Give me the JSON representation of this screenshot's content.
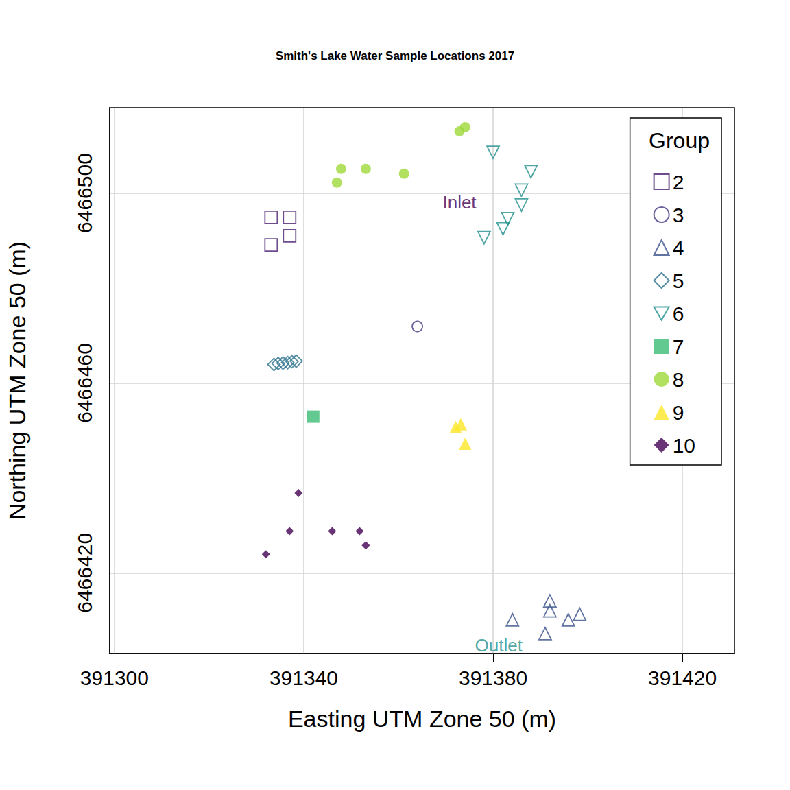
{
  "chart_data": {
    "type": "scatter",
    "title": "Smith's Lake Water Sample Locations 2017",
    "x_label": "Easting UTM Zone 50 (m)",
    "y_label": "Northing UTM Zone 50 (m)",
    "legend_title": "Group",
    "legend": "top-right",
    "grid": true,
    "xlim": [
      391299,
      391431
    ],
    "xticks": [
      391300,
      391340,
      391380,
      391420
    ],
    "ylim": [
      6466403,
      6466518
    ],
    "yticks": [
      6466420,
      6466460,
      6466500
    ],
    "series": [
      {
        "name": "2",
        "color": "#481F70",
        "marker": "square-open",
        "x": [
          391333.1,
          391337.0,
          391333.1,
          391337.0
        ],
        "y": [
          6466494.9,
          6466494.9,
          6466489.1,
          6466491.0
        ]
      },
      {
        "name": "3",
        "color": "#443A83",
        "marker": "circle-open",
        "x": [
          391364.0
        ],
        "y": [
          6466471.9
        ]
      },
      {
        "name": "4",
        "color": "#3B528B",
        "marker": "triangle-open",
        "x": [
          391384.1,
          391392.0,
          391392.0,
          391395.9,
          391398.3,
          391391.0
        ],
        "y": [
          6466410.1,
          6466414.1,
          6466412.0,
          6466410.1,
          6466411.3,
          6466407.2
        ]
      },
      {
        "name": "5",
        "color": "#2C728E",
        "marker": "diamond-open",
        "x": [
          391333.7,
          391334.6,
          391335.6,
          391336.6,
          391337.5,
          391338.4
        ],
        "y": [
          6466463.9,
          6466464.1,
          6466464.2,
          6466464.3,
          6466464.5,
          6466464.6
        ]
      },
      {
        "name": "6",
        "color": "#21908C",
        "marker": "triangle-down-open",
        "x": [
          391380.0,
          391388.0,
          391386.0,
          391386.0,
          391383.1,
          391382.1,
          391378.1
        ],
        "y": [
          6466508.6,
          6466504.5,
          6466500.6,
          6466497.5,
          6466494.6,
          6466492.5,
          6466490.6
        ]
      },
      {
        "name": "7",
        "color": "#3BBB75",
        "marker": "square",
        "x": [
          391342.0
        ],
        "y": [
          6466452.9
        ]
      },
      {
        "name": "8",
        "color": "#9FD93B",
        "marker": "circle",
        "x": [
          391372.9,
          391374.1,
          391347.9,
          391353.1,
          391347.0,
          391361.2
        ],
        "y": [
          6466513.0,
          6466513.9,
          6466505.1,
          6466505.1,
          6466502.2,
          6466504.1
        ]
      },
      {
        "name": "9",
        "color": "#FDE725",
        "marker": "triangle",
        "x": [
          391372.1,
          391373.2,
          391374.1
        ],
        "y": [
          6466450.7,
          6466451.3,
          6466447.2
        ]
      },
      {
        "name": "10",
        "color": "#440154",
        "marker": "diamond",
        "x": [
          391338.9,
          391337.0,
          391346.0,
          391351.8,
          391353.1,
          391332.0
        ],
        "y": [
          6466436.8,
          6466428.8,
          6466428.8,
          6466428.8,
          6466425.8,
          6466423.9
        ]
      }
    ],
    "annotations": [
      {
        "text": "Inlet",
        "x": 391372.9,
        "y": 6466498.0,
        "color": "#440154"
      },
      {
        "text": "Outlet",
        "x": 391381.2,
        "y": 6466404.8,
        "color": "#21908C"
      }
    ]
  }
}
